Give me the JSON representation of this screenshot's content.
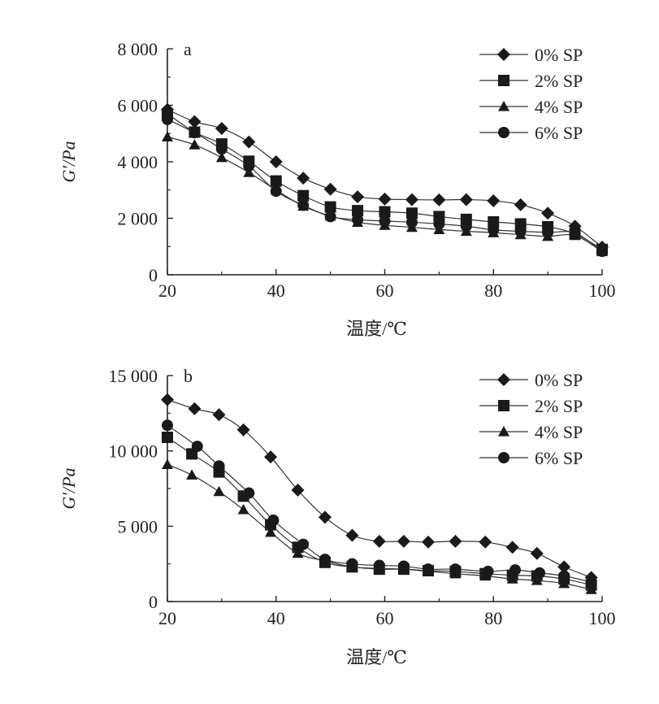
{
  "chart_data": [
    {
      "type": "line",
      "panel_label": "a",
      "xlabel": "温度/℃",
      "ylabel": "G′/Pa",
      "xlim": [
        20,
        100
      ],
      "ylim": [
        0,
        8000
      ],
      "x_ticks": [
        20,
        40,
        60,
        80,
        100
      ],
      "x_tick_labels": [
        "20",
        "40",
        "60",
        "80",
        "100"
      ],
      "y_ticks": [
        0,
        2000,
        4000,
        6000,
        8000
      ],
      "y_tick_labels": [
        "0",
        "2 000",
        "4 000",
        "6 000",
        "8 000"
      ],
      "grid": false,
      "legend_position": "top-right",
      "series": [
        {
          "name": "0% SP",
          "marker": "diamond",
          "x": [
            20,
            25,
            30,
            35,
            40,
            45,
            50,
            55,
            60,
            65,
            70,
            75,
            80,
            85,
            90,
            95,
            100
          ],
          "y": [
            5850,
            5420,
            5180,
            4700,
            4000,
            3420,
            3030,
            2760,
            2680,
            2660,
            2650,
            2660,
            2620,
            2480,
            2180,
            1720,
            980
          ]
        },
        {
          "name": "2% SP",
          "marker": "square",
          "x": [
            20,
            25,
            30,
            35,
            40,
            45,
            50,
            55,
            60,
            65,
            70,
            75,
            80,
            85,
            90,
            95,
            100
          ],
          "y": [
            5700,
            5050,
            4630,
            4020,
            3320,
            2800,
            2400,
            2270,
            2230,
            2180,
            2060,
            1960,
            1870,
            1800,
            1700,
            1450,
            900
          ]
        },
        {
          "name": "4% SP",
          "marker": "triangle",
          "x": [
            20,
            25,
            30,
            35,
            40,
            45,
            50,
            55,
            60,
            65,
            70,
            75,
            80,
            85,
            90,
            95,
            100
          ],
          "y": [
            4880,
            4600,
            4150,
            3620,
            3000,
            2430,
            2080,
            1860,
            1750,
            1680,
            1600,
            1540,
            1490,
            1420,
            1360,
            1390,
            820
          ]
        },
        {
          "name": "6% SP",
          "marker": "circle",
          "x": [
            20,
            25,
            30,
            35,
            40,
            45,
            50,
            55,
            60,
            65,
            70,
            75,
            80,
            85,
            90,
            95,
            100
          ],
          "y": [
            5500,
            5030,
            4450,
            3850,
            2960,
            2460,
            2060,
            1950,
            1900,
            1860,
            1800,
            1720,
            1590,
            1540,
            1500,
            1480,
            830
          ]
        }
      ]
    },
    {
      "type": "line",
      "panel_label": "b",
      "xlabel": "温度/℃",
      "ylabel": "G′/Pa",
      "xlim": [
        20,
        100
      ],
      "ylim": [
        0,
        15000
      ],
      "x_ticks": [
        20,
        40,
        60,
        80,
        100
      ],
      "x_tick_labels": [
        "20",
        "40",
        "60",
        "80",
        "100"
      ],
      "y_ticks": [
        0,
        5000,
        10000,
        15000
      ],
      "y_tick_labels": [
        "0",
        "5 000",
        "10 000",
        "15 000"
      ],
      "grid": false,
      "legend_position": "top-right",
      "series": [
        {
          "name": "0% SP",
          "marker": "diamond",
          "x": [
            20,
            25,
            29.5,
            34,
            39,
            44,
            49,
            54,
            59,
            63.5,
            68,
            73,
            78.5,
            83.5,
            88,
            93,
            98
          ],
          "y": [
            13400,
            12800,
            12400,
            11400,
            9600,
            7400,
            5600,
            4400,
            4000,
            4000,
            3950,
            4000,
            3950,
            3600,
            3200,
            2300,
            1600
          ]
        },
        {
          "name": "2% SP",
          "marker": "square",
          "x": [
            20,
            24.5,
            29.5,
            34,
            39,
            44,
            49,
            54,
            59,
            63.5,
            68,
            73,
            78.5,
            83.5,
            88,
            93,
            98
          ],
          "y": [
            10900,
            9800,
            8600,
            7000,
            5100,
            3600,
            2600,
            2300,
            2150,
            2150,
            2050,
            2000,
            1850,
            1750,
            1700,
            1500,
            1100
          ]
        },
        {
          "name": "4% SP",
          "marker": "triangle",
          "x": [
            20,
            24.5,
            29.5,
            34,
            39,
            44,
            49,
            54,
            59,
            63.5,
            68,
            73,
            78.5,
            83.5,
            88,
            93,
            98
          ],
          "y": [
            9100,
            8400,
            7300,
            6100,
            4600,
            3200,
            2700,
            2300,
            2200,
            2150,
            2000,
            1850,
            1700,
            1500,
            1400,
            1200,
            800
          ]
        },
        {
          "name": "6% SP",
          "marker": "circle",
          "x": [
            20,
            25.5,
            29.5,
            35,
            39.5,
            45,
            49,
            54,
            59,
            63.5,
            68,
            73,
            79,
            84,
            88.5,
            93,
            98
          ],
          "y": [
            11700,
            10300,
            9000,
            7200,
            5400,
            3800,
            2800,
            2500,
            2400,
            2350,
            2150,
            2150,
            2000,
            2100,
            1900,
            1700,
            1300
          ]
        }
      ]
    }
  ]
}
